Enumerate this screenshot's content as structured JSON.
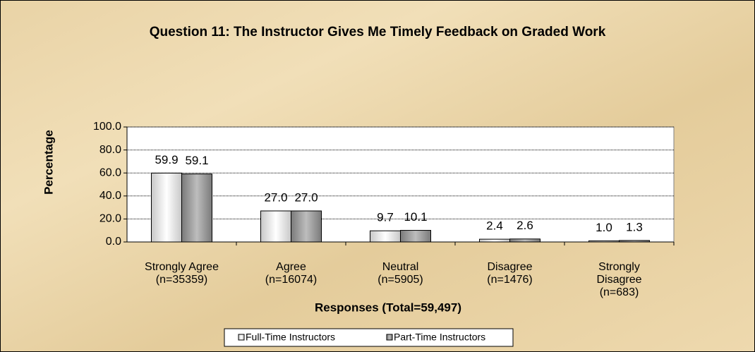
{
  "chart_data": {
    "type": "bar",
    "title": "Question 11:  The Instructor Gives Me Timely Feedback on Graded Work",
    "y_label": "Percentage",
    "x_label": "Responses (Total=59,497)",
    "categories": [
      [
        "Strongly Agree",
        "(n=35359)"
      ],
      [
        "Agree",
        "(n=16074)"
      ],
      [
        "Neutral",
        "(n=5905)"
      ],
      [
        "Disagree",
        "(n=1476)"
      ],
      [
        "Strongly",
        "Disagree",
        "(n=683)"
      ]
    ],
    "series": [
      {
        "name": "Full-Time Instructors",
        "color": "#c8c8c8",
        "values": [
          59.9,
          27.0,
          9.7,
          2.4,
          1.0
        ],
        "value_labels": [
          "59.9",
          "27.0",
          "9.7",
          "2.4",
          "1.0"
        ]
      },
      {
        "name": "Part-Time Instructors",
        "color": "#7a7a7a",
        "values": [
          59.1,
          27.0,
          10.1,
          2.6,
          1.3
        ],
        "value_labels": [
          "59.1",
          "27.0",
          "10.1",
          "2.6",
          "1.3"
        ]
      }
    ],
    "ylim": [
      0,
      100
    ],
    "yticks": [
      {
        "value": 0,
        "label": "0.0"
      },
      {
        "value": 20,
        "label": "20.0"
      },
      {
        "value": 40,
        "label": "40.0"
      },
      {
        "value": 60,
        "label": "60.0"
      },
      {
        "value": 80,
        "label": "80.0"
      },
      {
        "value": 100,
        "label": "100.0"
      }
    ],
    "grid": true,
    "legend": "bottom"
  }
}
